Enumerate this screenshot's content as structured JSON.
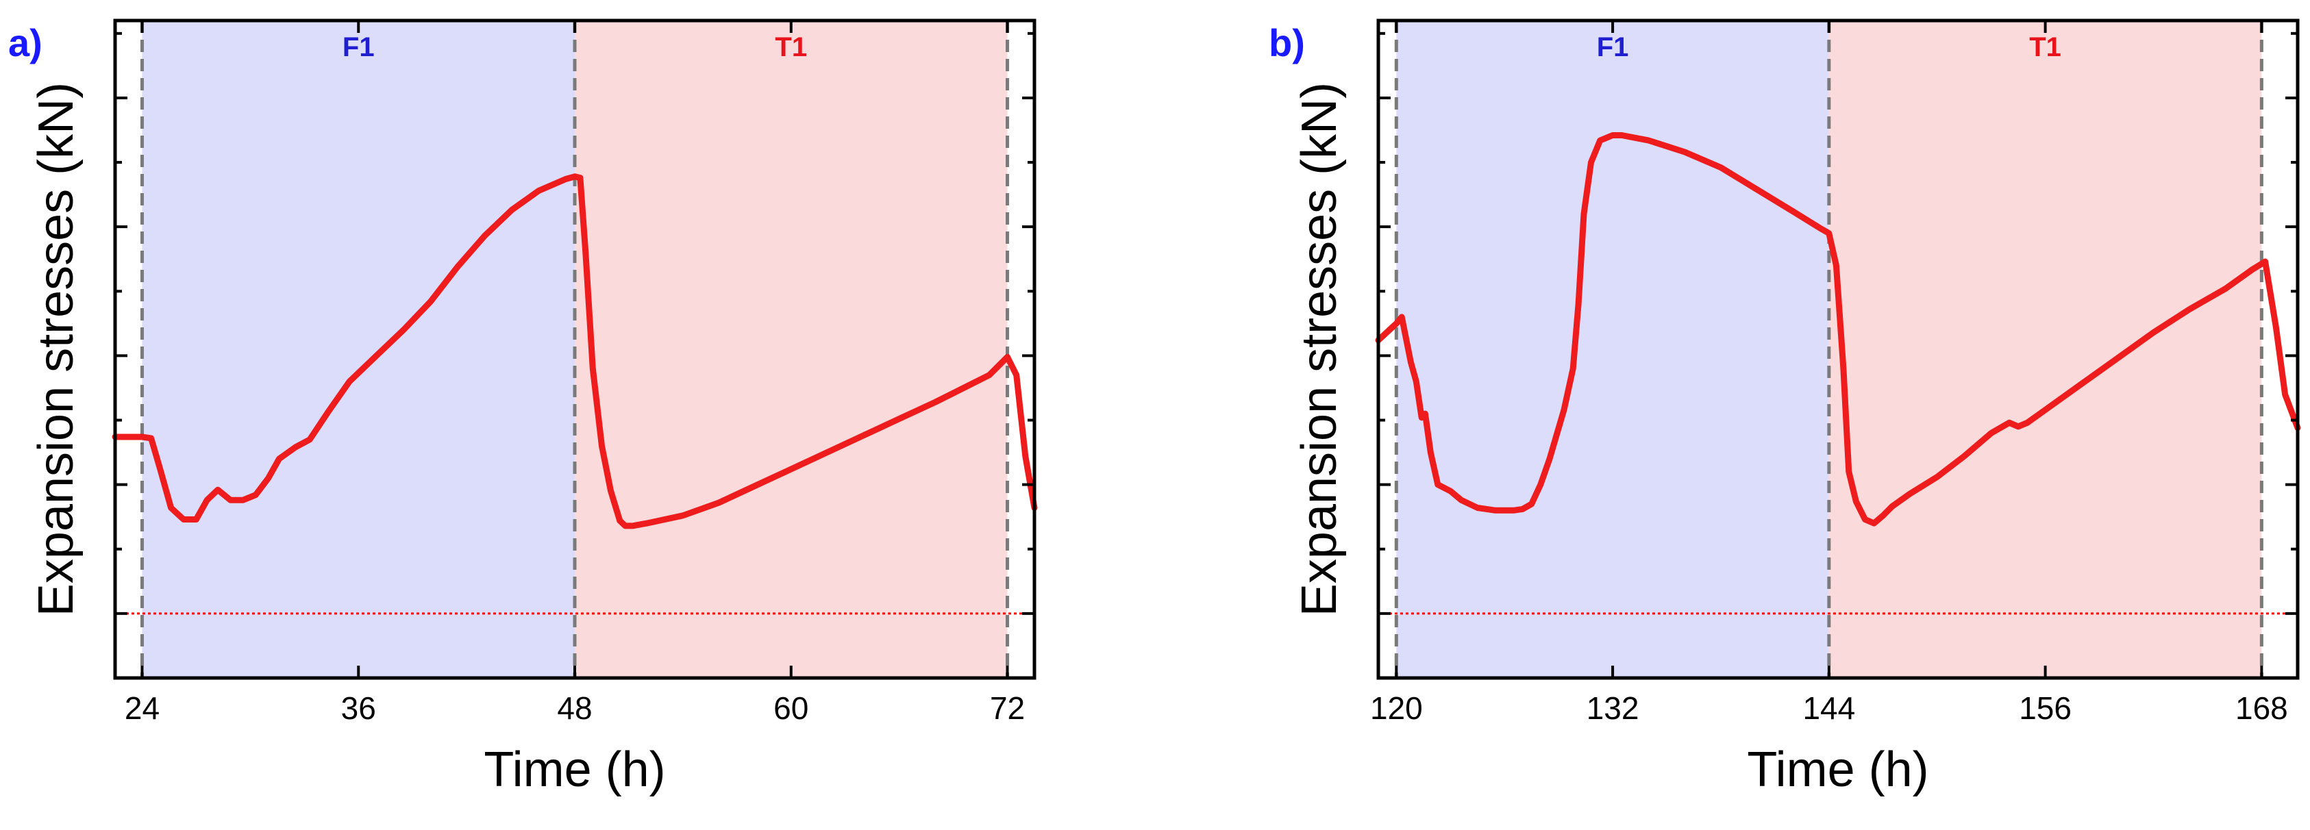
{
  "figure": {
    "panels": [
      {
        "label": "a)"
      },
      {
        "label": "b)"
      }
    ]
  },
  "colors": {
    "panel_label": "#1a1aff",
    "freeze_band": "#dcdcfb",
    "thaw_band": "#fadadb",
    "freeze_text": "#1f1fd0",
    "thaw_text": "#e8141c",
    "curve": "#ee1c1c",
    "zero_line": "#ff0000",
    "divider": "#7a7a7a",
    "axis": "#000000"
  },
  "chart_data": [
    {
      "type": "line",
      "panel": "a)",
      "xlabel": "Time (h)",
      "ylabel": "Expansion stresses (kN)",
      "xlim": [
        22.5,
        73.5
      ],
      "ylim": [
        -0.5,
        4.6
      ],
      "x_ticks": [
        24,
        36,
        48,
        60,
        72
      ],
      "x_tick_labels": [
        "24",
        "36",
        "48",
        "60",
        "72"
      ],
      "y_major_ticks": [
        0,
        1,
        2,
        3,
        4
      ],
      "y_minor_ticks": [
        0.5,
        1.5,
        2.5,
        3.5,
        4.5
      ],
      "y_tick_labels_shown": false,
      "zero_line": 0,
      "phases": [
        {
          "name": "F1",
          "start": 24,
          "end": 48,
          "kind": "freeze"
        },
        {
          "name": "T1",
          "start": 48,
          "end": 72,
          "kind": "thaw"
        }
      ],
      "phase_dividers": [
        24,
        48,
        72
      ],
      "series": [
        {
          "x": [
            22.5,
            24.0,
            24.5,
            25.0,
            25.6,
            26.3,
            27.0,
            27.6,
            28.2,
            28.9,
            29.6,
            30.3,
            31.0,
            31.6,
            32.5,
            33.3,
            34.3,
            35.5,
            37.0,
            38.5,
            40.0,
            41.5,
            43.0,
            44.5,
            46.0,
            47.5,
            48.0,
            48.3,
            48.6,
            49.0,
            49.5,
            50.0,
            50.5,
            50.8,
            51.2,
            52.0,
            54.0,
            56.0,
            58.0,
            60.0,
            62.0,
            64.0,
            66.0,
            68.0,
            70.0,
            71.0,
            72.0,
            72.5,
            73.0,
            73.5
          ],
          "y": [
            1.37,
            1.37,
            1.36,
            1.12,
            0.82,
            0.73,
            0.73,
            0.88,
            0.96,
            0.88,
            0.88,
            0.92,
            1.05,
            1.2,
            1.29,
            1.35,
            1.56,
            1.8,
            2.0,
            2.2,
            2.42,
            2.69,
            2.93,
            3.13,
            3.28,
            3.37,
            3.39,
            3.38,
            2.8,
            1.9,
            1.3,
            0.95,
            0.72,
            0.68,
            0.68,
            0.7,
            0.76,
            0.86,
            0.99,
            1.12,
            1.25,
            1.38,
            1.51,
            1.64,
            1.78,
            1.85,
            1.99,
            1.85,
            1.22,
            0.82
          ]
        }
      ]
    },
    {
      "type": "line",
      "panel": "b)",
      "xlabel": "Time (h)",
      "ylabel": "Expansion stresses (kN)",
      "xlim": [
        119.0,
        170.0
      ],
      "ylim": [
        -0.5,
        4.6
      ],
      "x_ticks": [
        120,
        132,
        144,
        156,
        168
      ],
      "x_tick_labels": [
        "120",
        "132",
        "144",
        "156",
        "168"
      ],
      "y_major_ticks": [
        0,
        1,
        2,
        3,
        4
      ],
      "y_minor_ticks": [
        0.5,
        1.5,
        2.5,
        3.5,
        4.5
      ],
      "y_tick_labels_shown": false,
      "zero_line": 0,
      "phases": [
        {
          "name": "F1",
          "start": 120,
          "end": 144,
          "kind": "freeze"
        },
        {
          "name": "T1",
          "start": 144,
          "end": 168,
          "kind": "thaw"
        }
      ],
      "phase_dividers": [
        120,
        144,
        168
      ],
      "series": [
        {
          "x": [
            119.0,
            120.0,
            120.3,
            120.8,
            121.1,
            121.4,
            121.6,
            121.9,
            122.3,
            123.0,
            123.6,
            124.5,
            125.5,
            126.5,
            127.0,
            127.5,
            128.0,
            128.5,
            129.3,
            129.8,
            130.1,
            130.4,
            130.8,
            131.3,
            132.0,
            132.5,
            134.0,
            136.0,
            138.0,
            140.0,
            142.0,
            143.5,
            144.0,
            144.4,
            144.8,
            145.1,
            145.5,
            146.0,
            146.5,
            147.0,
            147.5,
            148.5,
            150.0,
            151.5,
            153.0,
            154.0,
            154.5,
            155.0,
            156.0,
            158.0,
            160.0,
            162.0,
            164.0,
            166.0,
            167.5,
            168.2,
            168.8,
            169.3,
            170.0
          ],
          "y": [
            2.12,
            2.25,
            2.3,
            1.95,
            1.8,
            1.52,
            1.55,
            1.25,
            1.0,
            0.95,
            0.88,
            0.82,
            0.8,
            0.8,
            0.81,
            0.85,
            1.0,
            1.2,
            1.58,
            1.9,
            2.4,
            3.1,
            3.5,
            3.67,
            3.71,
            3.71,
            3.67,
            3.58,
            3.46,
            3.29,
            3.12,
            2.99,
            2.95,
            2.7,
            1.9,
            1.1,
            0.87,
            0.73,
            0.7,
            0.76,
            0.83,
            0.93,
            1.06,
            1.22,
            1.4,
            1.48,
            1.45,
            1.48,
            1.58,
            1.78,
            1.98,
            2.18,
            2.36,
            2.52,
            2.67,
            2.73,
            2.22,
            1.7,
            1.44
          ]
        }
      ]
    }
  ]
}
